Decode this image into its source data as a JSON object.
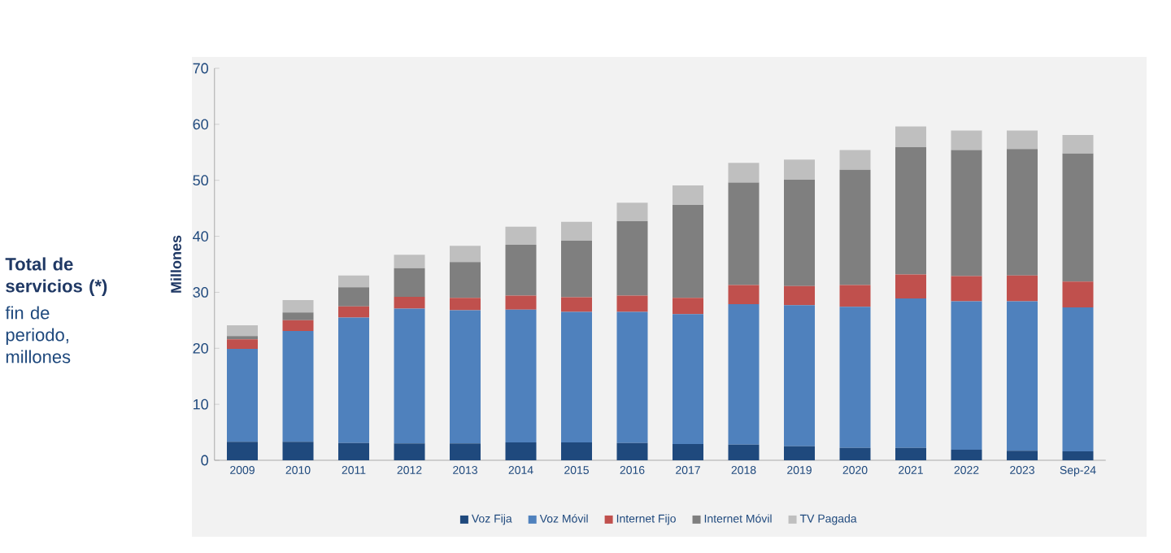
{
  "chart_data": {
    "type": "bar",
    "stacked": true,
    "title": "Total de servicios (*)",
    "subtitle": "fin de periodo, millones",
    "ylabel": "Millones",
    "categories": [
      "2009",
      "2010",
      "2011",
      "2012",
      "2013",
      "2014",
      "2015",
      "2016",
      "2017",
      "2018",
      "2019",
      "2020",
      "2021",
      "2022",
      "2023",
      "Sep-24"
    ],
    "series": [
      {
        "name": "Voz Fija",
        "color": "#1f497d",
        "values": [
          3.3,
          3.3,
          3.1,
          3.0,
          3.0,
          3.2,
          3.2,
          3.1,
          2.9,
          2.8,
          2.5,
          2.2,
          2.2,
          1.9,
          1.7,
          1.6
        ]
      },
      {
        "name": "Voz Móvil",
        "color": "#4f81bd",
        "values": [
          16.6,
          19.8,
          22.4,
          24.1,
          23.8,
          23.7,
          23.3,
          23.4,
          23.2,
          25.1,
          25.2,
          25.2,
          26.7,
          26.5,
          26.7,
          25.7
        ]
      },
      {
        "name": "Internet Fijo",
        "color": "#c0504d",
        "values": [
          1.7,
          1.9,
          2.0,
          2.1,
          2.2,
          2.5,
          2.6,
          2.9,
          2.9,
          3.4,
          3.4,
          3.9,
          4.3,
          4.5,
          4.6,
          4.6
        ]
      },
      {
        "name": "Internet Móvil",
        "color": "#7f7f7f",
        "values": [
          0.6,
          1.4,
          3.4,
          5.1,
          6.4,
          9.1,
          10.1,
          13.3,
          16.6,
          18.3,
          19.0,
          20.6,
          22.7,
          22.5,
          22.6,
          22.9
        ]
      },
      {
        "name": "TV Pagada",
        "color": "#bfbfbf",
        "values": [
          1.9,
          2.2,
          2.1,
          2.4,
          2.9,
          3.2,
          3.4,
          3.3,
          3.5,
          3.5,
          3.6,
          3.5,
          3.7,
          3.5,
          3.3,
          3.3
        ]
      }
    ],
    "ylim": [
      0,
      70
    ],
    "yticks": [
      0,
      10,
      20,
      30,
      40,
      50,
      60,
      70
    ],
    "legend": "bottom"
  }
}
